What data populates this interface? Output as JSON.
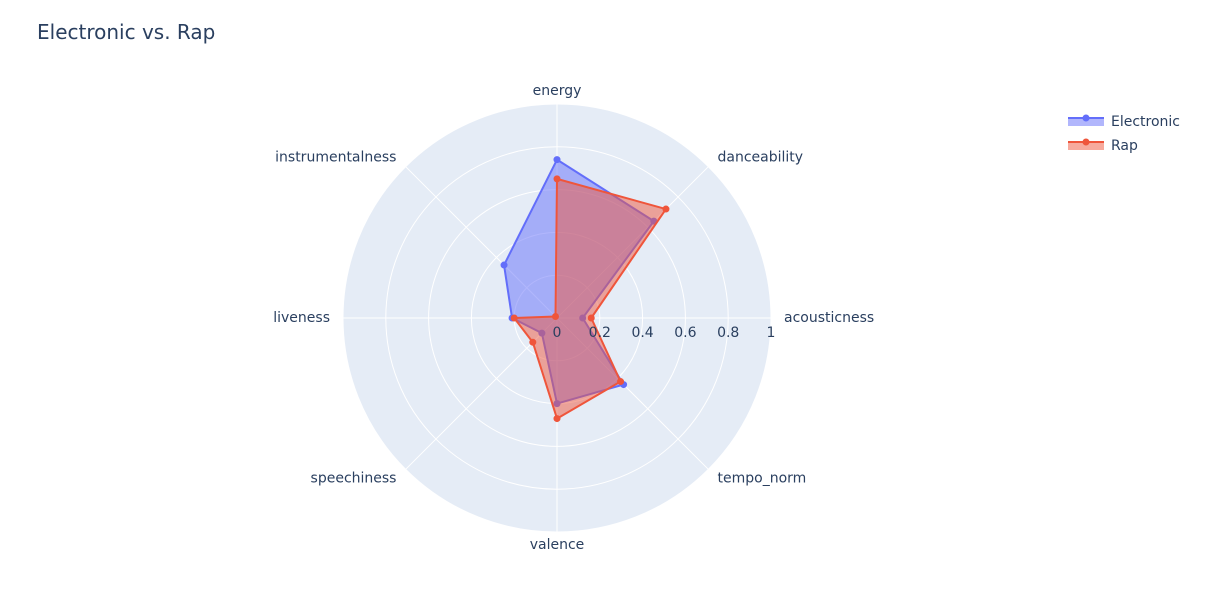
{
  "chart_data": {
    "type": "radar",
    "title": "Electronic vs. Rap",
    "categories": [
      "energy",
      "danceability",
      "acousticness",
      "tempo_norm",
      "valence",
      "speechiness",
      "liveness",
      "instrumentalness"
    ],
    "rlim": [
      0,
      1
    ],
    "radial_ticks": [
      {
        "value": 0,
        "label": "0"
      },
      {
        "value": 0.2,
        "label": "0.2"
      },
      {
        "value": 0.4,
        "label": "0.4"
      },
      {
        "value": 0.6,
        "label": "0.6"
      },
      {
        "value": 0.8,
        "label": "0.8"
      },
      {
        "value": 1,
        "label": "1"
      }
    ],
    "series": [
      {
        "name": "Electronic",
        "color": "#636efa",
        "values": [
          0.74,
          0.64,
          0.12,
          0.44,
          0.4,
          0.1,
          0.21,
          0.35
        ]
      },
      {
        "name": "Rap",
        "color": "#ef553b",
        "values": [
          0.65,
          0.72,
          0.16,
          0.42,
          0.47,
          0.16,
          0.2,
          0.01
        ]
      }
    ],
    "legend_position": "top-right",
    "polar_background": "#e5ecf6",
    "grid_color": "#ffffff"
  }
}
